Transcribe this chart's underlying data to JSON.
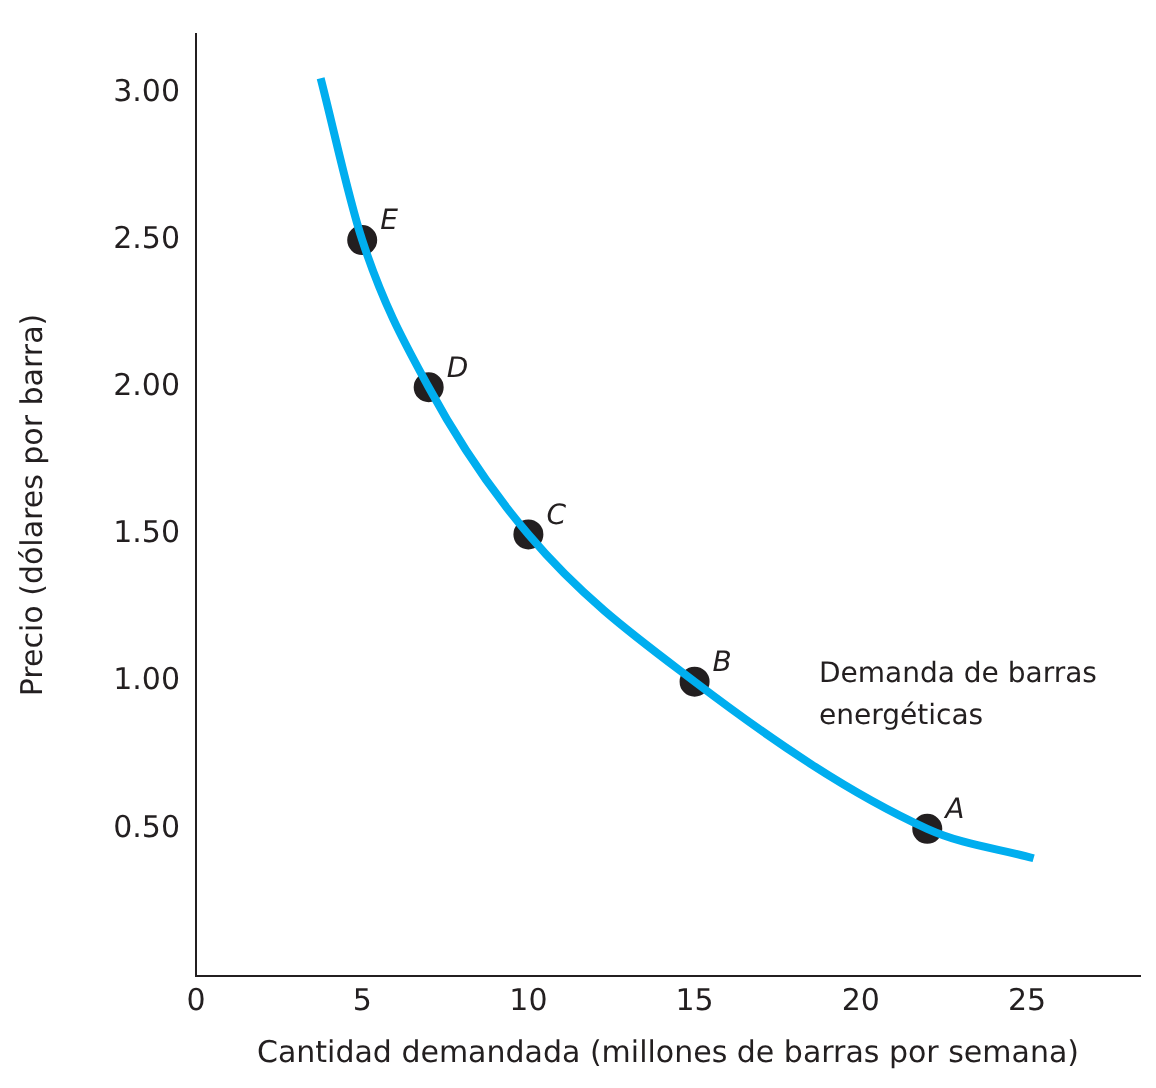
{
  "chart_data": {
    "type": "line",
    "xlabel": "Cantidad demandada (millones de barras por semana)",
    "ylabel": "Precio (dólares por barra)",
    "xlim": [
      0,
      28.4
    ],
    "ylim": [
      0,
      3.2
    ],
    "xticks": [
      0,
      5,
      10,
      15,
      20,
      25
    ],
    "yticks": [
      {
        "value": 0.5,
        "label": "0.50"
      },
      {
        "value": 1,
        "label": "1.00"
      },
      {
        "value": 1.5,
        "label": "1.50"
      },
      {
        "value": 2,
        "label": "2.00"
      },
      {
        "value": 2.5,
        "label": "2.50"
      },
      {
        "value": 3,
        "label": "3.00"
      }
    ],
    "grid": false,
    "legend": false,
    "series": [
      {
        "name": "Demanda de barras energéticas",
        "type": "line",
        "color": "#00aeef",
        "marker": "none",
        "x": [
          3.75,
          5,
          7,
          10,
          15,
          22,
          25.2
        ],
        "values": [
          3.05,
          2.5,
          2,
          1.5,
          1,
          0.5,
          0.4
        ]
      },
      {
        "type": "scatter",
        "color": "#231f20",
        "marker": "circle",
        "x": [
          22,
          15,
          10,
          7,
          5
        ],
        "values": [
          0.5,
          1,
          1.5,
          2,
          2.5
        ]
      }
    ],
    "annotations": [
      {
        "text": "A",
        "x": 22,
        "y": 0.5
      },
      {
        "text": "B",
        "x": 15,
        "y": 1
      },
      {
        "text": "C",
        "x": 10,
        "y": 1.5
      },
      {
        "text": "D",
        "x": 7,
        "y": 2
      },
      {
        "text": "E",
        "x": 5,
        "y": 2.5
      }
    ]
  }
}
